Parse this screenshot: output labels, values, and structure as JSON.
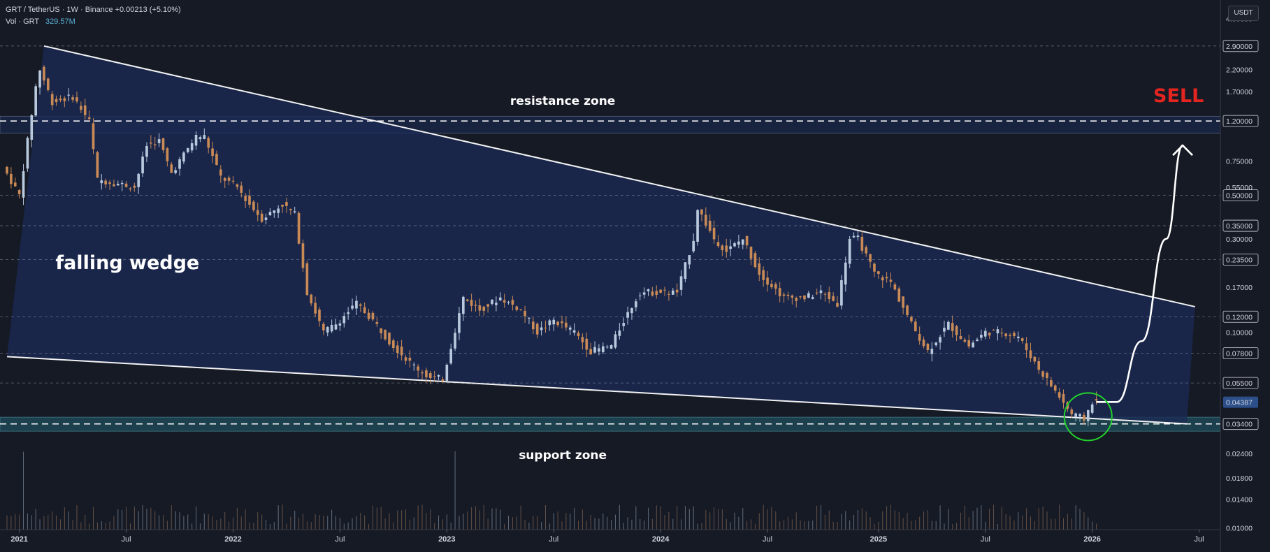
{
  "header": {
    "pair": "GRT / TetherUS · 1W · Binance",
    "change": "+0.00213 (+5.10%)",
    "vol_label": "Vol · GRT",
    "vol_value": "329.57M"
  },
  "currency_badge": "USDT",
  "colors": {
    "background": "#161a25",
    "bull": "#b8c9de",
    "bear": "#c98a56",
    "wedge_fill": "#1b2a55",
    "support_band": "#1f4d5c",
    "sell": "#e32420",
    "highlight_circle": "#22d12b",
    "price_tag": "#2c4f8a"
  },
  "chart_data": {
    "type": "candlestick",
    "symbol": "GRT/USDT",
    "interval": "1W",
    "y_scale": "log",
    "ylim": [
      0.0098,
      4.9
    ],
    "x_range": [
      "2020-12-14",
      "2026-08-10"
    ],
    "price_axis_labels": [
      "4.00000",
      "2.90000",
      "2.20000",
      "1.70000",
      "1.20000",
      "0.75000",
      "0.55000",
      "0.50000",
      "0.35000",
      "0.30000",
      "0.23500",
      "0.17000",
      "0.12000",
      "0.10000",
      "0.07800",
      "0.05500",
      "0.04387",
      "0.03400",
      "0.02400",
      "0.01800",
      "0.01400",
      "0.01000"
    ],
    "price_axis_values": [
      4.0,
      2.9,
      2.2,
      1.7,
      1.2,
      0.75,
      0.55,
      0.5,
      0.35,
      0.3,
      0.235,
      0.17,
      0.12,
      0.1,
      0.078,
      0.055,
      0.04387,
      0.034,
      0.024,
      0.018,
      0.014,
      0.01
    ],
    "price_axis_boxed": [
      "2.90000",
      "1.20000",
      "0.50000",
      "0.35000",
      "0.23500",
      "0.12000",
      "0.07800",
      "0.05500",
      "0.03400"
    ],
    "current_price_label": "0.04387",
    "horizontal_levels": [
      2.9,
      1.2,
      0.5,
      0.35,
      0.235,
      0.12,
      0.078,
      0.055,
      0.034
    ],
    "time_axis": [
      {
        "label": "2021",
        "date": "2021-01-04"
      },
      {
        "label": "Jul",
        "date": "2021-07-05"
      },
      {
        "label": "2022",
        "date": "2022-01-03"
      },
      {
        "label": "Jul",
        "date": "2022-07-04"
      },
      {
        "label": "2023",
        "date": "2023-01-02"
      },
      {
        "label": "Jul",
        "date": "2023-07-03"
      },
      {
        "label": "2024",
        "date": "2024-01-01"
      },
      {
        "label": "Jul",
        "date": "2024-07-01"
      },
      {
        "label": "2025",
        "date": "2025-01-06"
      },
      {
        "label": "Jul",
        "date": "2025-07-07"
      },
      {
        "label": "2026",
        "date": "2026-01-05"
      },
      {
        "label": "Jul",
        "date": "2026-07-06"
      }
    ],
    "price_path": [
      {
        "date": "2020-12-14",
        "price": 0.7
      },
      {
        "date": "2021-01-11",
        "price": 0.5
      },
      {
        "date": "2021-02-08",
        "price": 1.8
      },
      {
        "date": "2021-02-15",
        "price": 2.2
      },
      {
        "date": "2021-03-08",
        "price": 1.5
      },
      {
        "date": "2021-04-12",
        "price": 1.6
      },
      {
        "date": "2021-05-10",
        "price": 1.2
      },
      {
        "date": "2021-05-24",
        "price": 0.6
      },
      {
        "date": "2021-06-21",
        "price": 0.58
      },
      {
        "date": "2021-07-26",
        "price": 0.55
      },
      {
        "date": "2021-08-16",
        "price": 0.9
      },
      {
        "date": "2021-09-06",
        "price": 0.95
      },
      {
        "date": "2021-09-27",
        "price": 0.65
      },
      {
        "date": "2021-11-08",
        "price": 1.0
      },
      {
        "date": "2021-11-22",
        "price": 1.0
      },
      {
        "date": "2021-12-20",
        "price": 0.62
      },
      {
        "date": "2022-01-17",
        "price": 0.55
      },
      {
        "date": "2022-02-07",
        "price": 0.45
      },
      {
        "date": "2022-02-28",
        "price": 0.38
      },
      {
        "date": "2022-04-04",
        "price": 0.45
      },
      {
        "date": "2022-04-25",
        "price": 0.4
      },
      {
        "date": "2022-05-16",
        "price": 0.16
      },
      {
        "date": "2022-06-13",
        "price": 0.1
      },
      {
        "date": "2022-07-04",
        "price": 0.11
      },
      {
        "date": "2022-08-08",
        "price": 0.14
      },
      {
        "date": "2022-09-05",
        "price": 0.115
      },
      {
        "date": "2022-10-03",
        "price": 0.09
      },
      {
        "date": "2022-11-07",
        "price": 0.07
      },
      {
        "date": "2022-12-12",
        "price": 0.058
      },
      {
        "date": "2023-01-02",
        "price": 0.058
      },
      {
        "date": "2023-02-06",
        "price": 0.15
      },
      {
        "date": "2023-03-06",
        "price": 0.13
      },
      {
        "date": "2023-04-10",
        "price": 0.15
      },
      {
        "date": "2023-05-15",
        "price": 0.13
      },
      {
        "date": "2023-06-12",
        "price": 0.1
      },
      {
        "date": "2023-07-10",
        "price": 0.115
      },
      {
        "date": "2023-08-14",
        "price": 0.1
      },
      {
        "date": "2023-09-11",
        "price": 0.08
      },
      {
        "date": "2023-10-16",
        "price": 0.085
      },
      {
        "date": "2023-11-06",
        "price": 0.115
      },
      {
        "date": "2023-12-04",
        "price": 0.16
      },
      {
        "date": "2024-01-08",
        "price": 0.16
      },
      {
        "date": "2024-02-05",
        "price": 0.16
      },
      {
        "date": "2024-03-04",
        "price": 0.3
      },
      {
        "date": "2024-03-11",
        "price": 0.43
      },
      {
        "date": "2024-04-08",
        "price": 0.3
      },
      {
        "date": "2024-04-29",
        "price": 0.26
      },
      {
        "date": "2024-05-27",
        "price": 0.3
      },
      {
        "date": "2024-06-24",
        "price": 0.2
      },
      {
        "date": "2024-08-05",
        "price": 0.15
      },
      {
        "date": "2024-09-09",
        "price": 0.15
      },
      {
        "date": "2024-10-07",
        "price": 0.16
      },
      {
        "date": "2024-11-04",
        "price": 0.14
      },
      {
        "date": "2024-11-25",
        "price": 0.3
      },
      {
        "date": "2024-12-09",
        "price": 0.3
      },
      {
        "date": "2025-01-06",
        "price": 0.2
      },
      {
        "date": "2025-02-03",
        "price": 0.18
      },
      {
        "date": "2025-03-10",
        "price": 0.11
      },
      {
        "date": "2025-04-07",
        "price": 0.08
      },
      {
        "date": "2025-05-12",
        "price": 0.11
      },
      {
        "date": "2025-06-16",
        "price": 0.085
      },
      {
        "date": "2025-07-14",
        "price": 0.1
      },
      {
        "date": "2025-08-11",
        "price": 0.1
      },
      {
        "date": "2025-09-08",
        "price": 0.095
      },
      {
        "date": "2025-10-13",
        "price": 0.065
      },
      {
        "date": "2025-11-10",
        "price": 0.05
      },
      {
        "date": "2025-12-08",
        "price": 0.038
      },
      {
        "date": "2025-12-29",
        "price": 0.036
      },
      {
        "date": "2026-01-12",
        "price": 0.044
      }
    ],
    "falling_wedge": {
      "upper_line": [
        {
          "date": "2021-02-15",
          "price": 2.9
        },
        {
          "date": "2026-06-29",
          "price": 0.135
        }
      ],
      "lower_line": [
        {
          "date": "2020-12-14",
          "price": 0.075
        },
        {
          "date": "2026-06-15",
          "price": 0.034
        }
      ]
    },
    "resistance_zone": {
      "low": 1.04,
      "high": 1.27
    },
    "support_zone": {
      "low": 0.0312,
      "high": 0.0368
    },
    "projected_move": [
      {
        "date": "2026-01-12",
        "price": 0.044
      },
      {
        "date": "2026-02-16",
        "price": 0.044
      },
      {
        "date": "2026-03-30",
        "price": 0.09
      },
      {
        "date": "2026-05-11",
        "price": 0.3
      },
      {
        "date": "2026-06-08",
        "price": 0.9
      }
    ],
    "highlight_circle_center": {
      "date": "2025-12-29",
      "price": 0.037
    },
    "annotations": {
      "resistance_zone": "resistance zone",
      "support_zone": "support zone",
      "falling_wedge": "falling wedge",
      "sell": "SELL"
    }
  }
}
